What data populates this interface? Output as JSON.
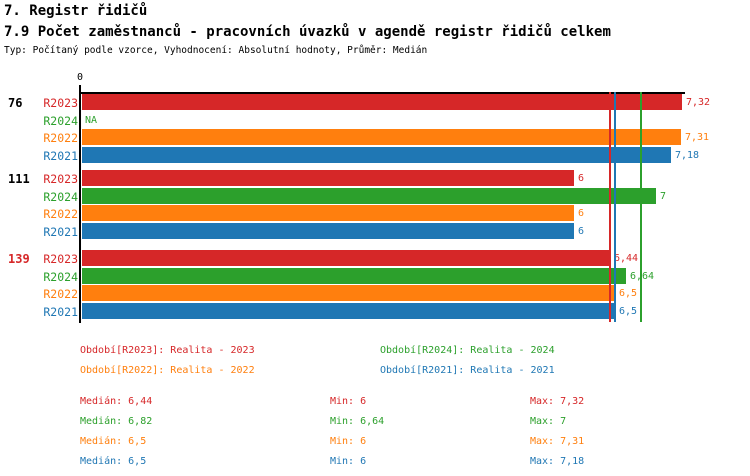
{
  "header": {
    "title": "7. Registr řidičů",
    "subtitle": "7.9 Počet zaměstnanců - pracovních úvazků v agendě registr řidičů celkem",
    "meta": "Typ: Počítaný podle vzorce, Vyhodnocení: Absolutní hodnoty, Průměr: Medián"
  },
  "colors": {
    "R2023": "#d62728",
    "R2024": "#2ca02c",
    "R2022": "#ff7f0e",
    "R2021": "#1f77b4",
    "text": "#000000"
  },
  "chart_data": {
    "type": "bar",
    "orientation": "horizontal",
    "title": "7.9 Počet zaměstnanců - pracovních úvazků v agendě registr řidičů celkem",
    "xlabel": "",
    "ylabel": "",
    "xlim": [
      0,
      7.35
    ],
    "axis_zero_label": "0",
    "series_order": [
      "R2023",
      "R2024",
      "R2022",
      "R2021"
    ],
    "groups": [
      {
        "label": "76",
        "label_color": "#000000",
        "bars": [
          {
            "series": "R2023",
            "value": 7.32,
            "value_label": "7,32",
            "color": "#d62728"
          },
          {
            "series": "R2024",
            "value": null,
            "value_label": "NA",
            "color": "#2ca02c"
          },
          {
            "series": "R2022",
            "value": 7.31,
            "value_label": "7,31",
            "color": "#ff7f0e"
          },
          {
            "series": "R2021",
            "value": 7.18,
            "value_label": "7,18",
            "color": "#1f77b4"
          }
        ]
      },
      {
        "label": "111",
        "label_color": "#000000",
        "bars": [
          {
            "series": "R2023",
            "value": 6,
            "value_label": "6",
            "color": "#d62728"
          },
          {
            "series": "R2024",
            "value": 7,
            "value_label": "7",
            "color": "#2ca02c"
          },
          {
            "series": "R2022",
            "value": 6,
            "value_label": "6",
            "color": "#ff7f0e"
          },
          {
            "series": "R2021",
            "value": 6,
            "value_label": "6",
            "color": "#1f77b4"
          }
        ]
      },
      {
        "label": "139",
        "label_color": "#d62728",
        "bars": [
          {
            "series": "R2023",
            "value": 6.44,
            "value_label": "6,44",
            "color": "#d62728"
          },
          {
            "series": "R2024",
            "value": 6.64,
            "value_label": "6,64",
            "color": "#2ca02c"
          },
          {
            "series": "R2022",
            "value": 6.5,
            "value_label": "6,5",
            "color": "#ff7f0e"
          },
          {
            "series": "R2021",
            "value": 6.5,
            "value_label": "6,5",
            "color": "#1f77b4"
          }
        ]
      }
    ],
    "median_lines": [
      {
        "series": "R2023",
        "value": 6.44,
        "color": "#d62728"
      },
      {
        "series": "R2022",
        "value": 6.5,
        "color": "#ff7f0e"
      },
      {
        "series": "R2021",
        "value": 6.5,
        "color": "#1f77b4"
      },
      {
        "series": "R2024",
        "value": 6.82,
        "color": "#2ca02c"
      }
    ]
  },
  "legend": {
    "items": [
      {
        "series": "R2023",
        "label": "Období[R2023]: Realita - 2023",
        "color": "#d62728"
      },
      {
        "series": "R2024",
        "label": "Období[R2024]: Realita - 2024",
        "color": "#2ca02c"
      },
      {
        "series": "R2022",
        "label": "Období[R2022]: Realita - 2022",
        "color": "#ff7f0e"
      },
      {
        "series": "R2021",
        "label": "Období[R2021]: Realita - 2021",
        "color": "#1f77b4"
      }
    ]
  },
  "stats": {
    "rows": [
      {
        "series": "R2023",
        "color": "#d62728",
        "median": "Medián: 6,44",
        "min": "Min: 6",
        "max": "Max: 7,32"
      },
      {
        "series": "R2024",
        "color": "#2ca02c",
        "median": "Medián: 6,82",
        "min": "Min: 6,64",
        "max": "Max: 7"
      },
      {
        "series": "R2022",
        "color": "#ff7f0e",
        "median": "Medián: 6,5",
        "min": "Min: 6",
        "max": "Max: 7,31"
      },
      {
        "series": "R2021",
        "color": "#1f77b4",
        "median": "Medián: 6,5",
        "min": "Min: 6",
        "max": "Max: 7,18"
      }
    ]
  }
}
